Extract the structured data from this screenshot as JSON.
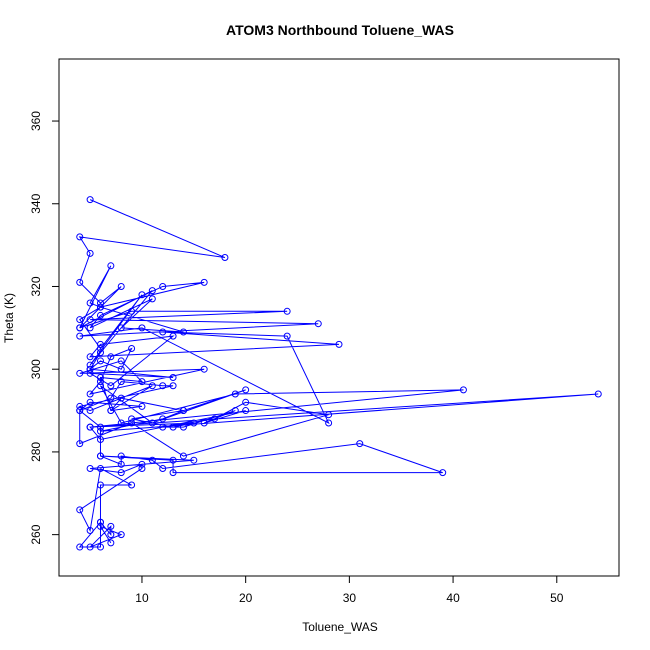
{
  "chart_data": {
    "type": "line",
    "title": "ATOM3 Northbound Toluene_WAS",
    "xlabel": "Toluene_WAS",
    "ylabel": "Theta (K)",
    "xlim": [
      2.0,
      56.0
    ],
    "ylim": [
      250.0,
      375.0
    ],
    "x_ticks": [
      10,
      20,
      30,
      40,
      50
    ],
    "y_ticks": [
      260,
      280,
      300,
      320,
      340,
      360
    ],
    "grid": false,
    "legend": "none",
    "series": [
      {
        "color": "#0000ff",
        "marker": "open-circle",
        "x": [
          5,
          18,
          4,
          5,
          4,
          6,
          8,
          4,
          7,
          5,
          6,
          16,
          12,
          6,
          5,
          11,
          8,
          14,
          6,
          4,
          6,
          10,
          5,
          11,
          4,
          9,
          24,
          5,
          27,
          4,
          10,
          28,
          24,
          12,
          29,
          5,
          6,
          13,
          7,
          5,
          13,
          5,
          6,
          5,
          6,
          8,
          9,
          7,
          6,
          5,
          16,
          4,
          8,
          10,
          6,
          7,
          10,
          5,
          4,
          7,
          8,
          12,
          13,
          4,
          5,
          11,
          7,
          8,
          14,
          20,
          11,
          6,
          8,
          19,
          41,
          5,
          54,
          6,
          12,
          14,
          9,
          13,
          15,
          5,
          6,
          20,
          16,
          19,
          14,
          12,
          17,
          20,
          28,
          14,
          9,
          4,
          4,
          6,
          6,
          8,
          8,
          11,
          12,
          31,
          39,
          13,
          13,
          6,
          15,
          5,
          8,
          10,
          10,
          4,
          5,
          6,
          9,
          6,
          6,
          6,
          4,
          6,
          7,
          7,
          5,
          8,
          6,
          7
        ],
        "y": [
          341,
          327,
          332,
          328,
          321,
          316,
          320,
          310,
          325,
          316,
          315,
          321,
          320,
          313,
          310,
          317,
          310,
          309,
          315,
          312,
          305,
          318,
          301,
          319,
          310,
          314,
          314,
          312,
          311,
          308,
          310,
          287,
          308,
          309,
          306,
          303,
          306,
          308,
          296,
          299,
          298,
          300,
          304,
          300,
          302,
          300,
          305,
          303,
          297,
          294,
          300,
          299,
          302,
          297,
          298,
          290,
          291,
          292,
          290,
          293,
          297,
          296,
          296,
          291,
          290,
          296,
          290,
          293,
          290,
          295,
          287,
          296,
          287,
          294,
          295,
          286,
          294,
          285,
          288,
          290,
          288,
          286,
          287,
          286,
          283,
          290,
          287,
          290,
          286,
          286,
          288,
          292,
          289,
          279,
          287,
          282,
          290,
          286,
          279,
          277,
          279,
          278,
          276,
          282,
          275,
          275,
          278,
          279,
          278,
          276,
          275,
          277,
          276,
          266,
          261,
          276,
          272,
          272,
          263,
          257,
          257,
          263,
          260,
          262,
          257,
          260,
          262,
          258
        ]
      }
    ]
  }
}
